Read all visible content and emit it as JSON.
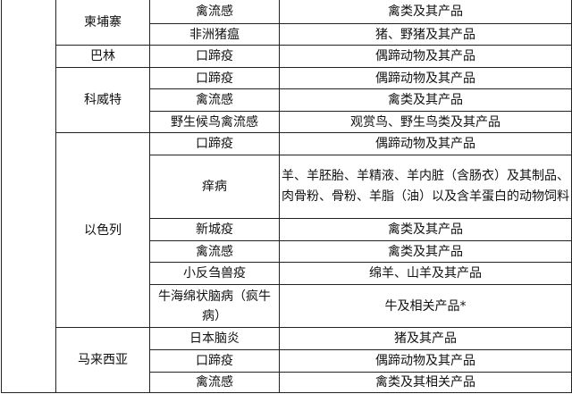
{
  "rows": [
    {
      "country": "柬埔寨",
      "entries": [
        {
          "disease": "禽流感",
          "products": "禽类及其产品"
        },
        {
          "disease": "非洲猪瘟",
          "products": "猪、野猪及其产品"
        }
      ]
    },
    {
      "country": "巴林",
      "entries": [
        {
          "disease": "口蹄疫",
          "products": "偶蹄动物及其产品"
        }
      ]
    },
    {
      "country": "科威特",
      "entries": [
        {
          "disease": "口蹄疫",
          "products": "偶蹄动物及其产品"
        },
        {
          "disease": "禽流感",
          "products": "禽类及其产品"
        },
        {
          "disease": "野生候鸟禽流感",
          "products": "观赏鸟、野生鸟类及其产品"
        }
      ]
    },
    {
      "country": "以色列",
      "entries": [
        {
          "disease": "口蹄疫",
          "products": "偶蹄动物及其产品"
        },
        {
          "disease": "痒病",
          "products": "羊、羊胚胎、羊精液、羊内脏（含肠衣）及其制品、肉骨粉、骨粉、羊脂（油）以及含羊蛋白的动物饲料"
        },
        {
          "disease": "新城疫",
          "products": "禽类及其产品"
        },
        {
          "disease": "禽流感",
          "products": "禽类及其产品"
        },
        {
          "disease": "小反刍兽疫",
          "products": "绵羊、山羊及其产品"
        },
        {
          "disease": "牛海绵状脑病（疯牛病）",
          "products": "牛及相关产品*"
        }
      ]
    },
    {
      "country": "马来西亚",
      "entries": [
        {
          "disease": "日本脑炎",
          "products": "猪及其产品"
        },
        {
          "disease": "口蹄疫",
          "products": "偶蹄动物及其产品"
        },
        {
          "disease": "禽流感",
          "products": "禽类及其相关产品"
        }
      ]
    }
  ]
}
